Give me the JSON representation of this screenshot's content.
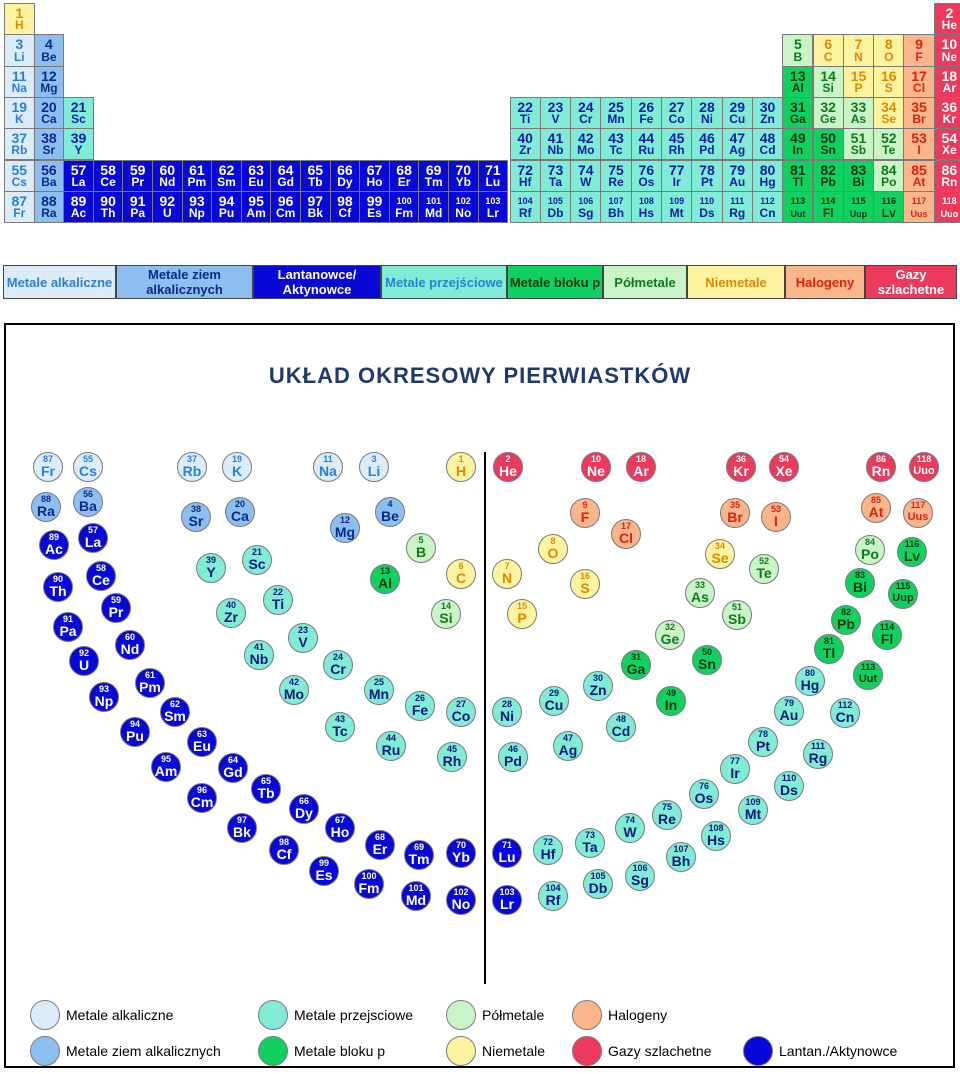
{
  "title": "UKŁAD OKRESOWY PIERWIASTKÓW",
  "colors": {
    "alkali": {
      "bg": "#dcebf8",
      "fg": "#2a7fd8"
    },
    "alkaline": {
      "bg": "#8cbff0",
      "fg": "#0a2a8a"
    },
    "lanact": {
      "bg": "#0808d8",
      "fg": "#ffffff"
    },
    "transition": {
      "bg": "#80ecd6",
      "fg": "#1020a8"
    },
    "pblock": {
      "bg": "#10d060",
      "fg": "#083818"
    },
    "metalloid": {
      "bg": "#c8f4c8",
      "fg": "#0f7a1a"
    },
    "nonmetal": {
      "bg": "#fbf3a0",
      "fg": "#e08800"
    },
    "halogen": {
      "bg": "#f8b68a",
      "fg": "#e02010"
    },
    "noble": {
      "bg": "#ec3a5c",
      "fg": "#ffffff"
    }
  },
  "elements": [
    {
      "n": "1",
      "s": "H",
      "c": "nonmetal",
      "g": 1,
      "r": 0
    },
    {
      "n": "2",
      "s": "He",
      "c": "noble",
      "g": 32,
      "r": 0
    },
    {
      "n": "3",
      "s": "Li",
      "c": "alkali",
      "g": 1,
      "r": 1
    },
    {
      "n": "4",
      "s": "Be",
      "c": "alkaline",
      "g": 2,
      "r": 1
    },
    {
      "n": "5",
      "s": "B",
      "c": "metalloid",
      "g": 27,
      "r": 1
    },
    {
      "n": "6",
      "s": "C",
      "c": "nonmetal",
      "g": 28,
      "r": 1
    },
    {
      "n": "7",
      "s": "N",
      "c": "nonmetal",
      "g": 29,
      "r": 1
    },
    {
      "n": "8",
      "s": "O",
      "c": "nonmetal",
      "g": 30,
      "r": 1
    },
    {
      "n": "9",
      "s": "F",
      "c": "halogen",
      "g": 31,
      "r": 1
    },
    {
      "n": "10",
      "s": "Ne",
      "c": "noble",
      "g": 32,
      "r": 1
    },
    {
      "n": "11",
      "s": "Na",
      "c": "alkali",
      "g": 1,
      "r": 2
    },
    {
      "n": "12",
      "s": "Mg",
      "c": "alkaline",
      "g": 2,
      "r": 2
    },
    {
      "n": "13",
      "s": "Al",
      "c": "pblock",
      "g": 27,
      "r": 2
    },
    {
      "n": "14",
      "s": "Si",
      "c": "metalloid",
      "g": 28,
      "r": 2
    },
    {
      "n": "15",
      "s": "P",
      "c": "nonmetal",
      "g": 29,
      "r": 2
    },
    {
      "n": "16",
      "s": "S",
      "c": "nonmetal",
      "g": 30,
      "r": 2
    },
    {
      "n": "17",
      "s": "Cl",
      "c": "halogen",
      "g": 31,
      "r": 2
    },
    {
      "n": "18",
      "s": "Ar",
      "c": "noble",
      "g": 32,
      "r": 2
    },
    {
      "n": "19",
      "s": "K",
      "c": "alkali",
      "g": 1,
      "r": 3
    },
    {
      "n": "20",
      "s": "Ca",
      "c": "alkaline",
      "g": 2,
      "r": 3
    },
    {
      "n": "21",
      "s": "Sc",
      "c": "transition",
      "g": 3,
      "r": 3
    },
    {
      "n": "22",
      "s": "Ti",
      "c": "transition",
      "g": 18,
      "r": 3
    },
    {
      "n": "23",
      "s": "V",
      "c": "transition",
      "g": 19,
      "r": 3
    },
    {
      "n": "24",
      "s": "Cr",
      "c": "transition",
      "g": 20,
      "r": 3
    },
    {
      "n": "25",
      "s": "Mn",
      "c": "transition",
      "g": 21,
      "r": 3
    },
    {
      "n": "26",
      "s": "Fe",
      "c": "transition",
      "g": 22,
      "r": 3
    },
    {
      "n": "27",
      "s": "Co",
      "c": "transition",
      "g": 23,
      "r": 3
    },
    {
      "n": "28",
      "s": "Ni",
      "c": "transition",
      "g": 24,
      "r": 3
    },
    {
      "n": "29",
      "s": "Cu",
      "c": "transition",
      "g": 25,
      "r": 3
    },
    {
      "n": "30",
      "s": "Zn",
      "c": "transition",
      "g": 26,
      "r": 3
    },
    {
      "n": "31",
      "s": "Ga",
      "c": "pblock",
      "g": 27,
      "r": 3
    },
    {
      "n": "32",
      "s": "Ge",
      "c": "metalloid",
      "g": 28,
      "r": 3
    },
    {
      "n": "33",
      "s": "As",
      "c": "metalloid",
      "g": 29,
      "r": 3
    },
    {
      "n": "34",
      "s": "Se",
      "c": "nonmetal",
      "g": 30,
      "r": 3
    },
    {
      "n": "35",
      "s": "Br",
      "c": "halogen",
      "g": 31,
      "r": 3
    },
    {
      "n": "36",
      "s": "Kr",
      "c": "noble",
      "g": 32,
      "r": 3
    },
    {
      "n": "37",
      "s": "Rb",
      "c": "alkali",
      "g": 1,
      "r": 4
    },
    {
      "n": "38",
      "s": "Sr",
      "c": "alkaline",
      "g": 2,
      "r": 4
    },
    {
      "n": "39",
      "s": "Y",
      "c": "transition",
      "g": 3,
      "r": 4
    },
    {
      "n": "40",
      "s": "Zr",
      "c": "transition",
      "g": 18,
      "r": 4
    },
    {
      "n": "41",
      "s": "Nb",
      "c": "transition",
      "g": 19,
      "r": 4
    },
    {
      "n": "42",
      "s": "Mo",
      "c": "transition",
      "g": 20,
      "r": 4
    },
    {
      "n": "43",
      "s": "Tc",
      "c": "transition",
      "g": 21,
      "r": 4
    },
    {
      "n": "44",
      "s": "Ru",
      "c": "transition",
      "g": 22,
      "r": 4
    },
    {
      "n": "45",
      "s": "Rh",
      "c": "transition",
      "g": 23,
      "r": 4
    },
    {
      "n": "46",
      "s": "Pd",
      "c": "transition",
      "g": 24,
      "r": 4
    },
    {
      "n": "47",
      "s": "Ag",
      "c": "transition",
      "g": 25,
      "r": 4
    },
    {
      "n": "48",
      "s": "Cd",
      "c": "transition",
      "g": 26,
      "r": 4
    },
    {
      "n": "49",
      "s": "In",
      "c": "pblock",
      "g": 27,
      "r": 4
    },
    {
      "n": "50",
      "s": "Sn",
      "c": "pblock",
      "g": 28,
      "r": 4
    },
    {
      "n": "51",
      "s": "Sb",
      "c": "metalloid",
      "g": 29,
      "r": 4
    },
    {
      "n": "52",
      "s": "Te",
      "c": "metalloid",
      "g": 30,
      "r": 4
    },
    {
      "n": "53",
      "s": "I",
      "c": "halogen",
      "g": 31,
      "r": 4
    },
    {
      "n": "54",
      "s": "Xe",
      "c": "noble",
      "g": 32,
      "r": 4
    },
    {
      "n": "55",
      "s": "Cs",
      "c": "alkali",
      "g": 1,
      "r": 5
    },
    {
      "n": "56",
      "s": "Ba",
      "c": "alkaline",
      "g": 2,
      "r": 5
    },
    {
      "n": "57",
      "s": "La",
      "c": "lanact",
      "g": 3,
      "r": 5
    },
    {
      "n": "58",
      "s": "Ce",
      "c": "lanact",
      "g": 4,
      "r": 5
    },
    {
      "n": "59",
      "s": "Pr",
      "c": "lanact",
      "g": 5,
      "r": 5
    },
    {
      "n": "60",
      "s": "Nd",
      "c": "lanact",
      "g": 6,
      "r": 5
    },
    {
      "n": "61",
      "s": "Pm",
      "c": "lanact",
      "g": 7,
      "r": 5
    },
    {
      "n": "62",
      "s": "Sm",
      "c": "lanact",
      "g": 8,
      "r": 5
    },
    {
      "n": "63",
      "s": "Eu",
      "c": "lanact",
      "g": 9,
      "r": 5
    },
    {
      "n": "64",
      "s": "Gd",
      "c": "lanact",
      "g": 10,
      "r": 5
    },
    {
      "n": "65",
      "s": "Tb",
      "c": "lanact",
      "g": 11,
      "r": 5
    },
    {
      "n": "66",
      "s": "Dy",
      "c": "lanact",
      "g": 12,
      "r": 5
    },
    {
      "n": "67",
      "s": "Ho",
      "c": "lanact",
      "g": 13,
      "r": 5
    },
    {
      "n": "68",
      "s": "Er",
      "c": "lanact",
      "g": 14,
      "r": 5
    },
    {
      "n": "69",
      "s": "Tm",
      "c": "lanact",
      "g": 15,
      "r": 5
    },
    {
      "n": "70",
      "s": "Yb",
      "c": "lanact",
      "g": 16,
      "r": 5
    },
    {
      "n": "71",
      "s": "Lu",
      "c": "lanact",
      "g": 17,
      "r": 5
    },
    {
      "n": "72",
      "s": "Hf",
      "c": "transition",
      "g": 18,
      "r": 5
    },
    {
      "n": "73",
      "s": "Ta",
      "c": "transition",
      "g": 19,
      "r": 5
    },
    {
      "n": "74",
      "s": "W",
      "c": "transition",
      "g": 20,
      "r": 5
    },
    {
      "n": "75",
      "s": "Re",
      "c": "transition",
      "g": 21,
      "r": 5
    },
    {
      "n": "76",
      "s": "Os",
      "c": "transition",
      "g": 22,
      "r": 5
    },
    {
      "n": "77",
      "s": "Ir",
      "c": "transition",
      "g": 23,
      "r": 5
    },
    {
      "n": "78",
      "s": "Pt",
      "c": "transition",
      "g": 24,
      "r": 5
    },
    {
      "n": "79",
      "s": "Au",
      "c": "transition",
      "g": 25,
      "r": 5
    },
    {
      "n": "80",
      "s": "Hg",
      "c": "transition",
      "g": 26,
      "r": 5
    },
    {
      "n": "81",
      "s": "Tl",
      "c": "pblock",
      "g": 27,
      "r": 5
    },
    {
      "n": "82",
      "s": "Pb",
      "c": "pblock",
      "g": 28,
      "r": 5
    },
    {
      "n": "83",
      "s": "Bi",
      "c": "pblock",
      "g": 29,
      "r": 5
    },
    {
      "n": "84",
      "s": "Po",
      "c": "metalloid",
      "g": 30,
      "r": 5
    },
    {
      "n": "85",
      "s": "At",
      "c": "halogen",
      "g": 31,
      "r": 5
    },
    {
      "n": "86",
      "s": "Rn",
      "c": "noble",
      "g": 32,
      "r": 5
    },
    {
      "n": "87",
      "s": "Fr",
      "c": "alkali",
      "g": 1,
      "r": 6
    },
    {
      "n": "88",
      "s": "Ra",
      "c": "alkaline",
      "g": 2,
      "r": 6
    },
    {
      "n": "89",
      "s": "Ac",
      "c": "lanact",
      "g": 3,
      "r": 6
    },
    {
      "n": "90",
      "s": "Th",
      "c": "lanact",
      "g": 4,
      "r": 6
    },
    {
      "n": "91",
      "s": "Pa",
      "c": "lanact",
      "g": 5,
      "r": 6
    },
    {
      "n": "92",
      "s": "U",
      "c": "lanact",
      "g": 6,
      "r": 6
    },
    {
      "n": "93",
      "s": "Np",
      "c": "lanact",
      "g": 7,
      "r": 6
    },
    {
      "n": "94",
      "s": "Pu",
      "c": "lanact",
      "g": 8,
      "r": 6
    },
    {
      "n": "95",
      "s": "Am",
      "c": "lanact",
      "g": 9,
      "r": 6
    },
    {
      "n": "96",
      "s": "Cm",
      "c": "lanact",
      "g": 10,
      "r": 6
    },
    {
      "n": "97",
      "s": "Bk",
      "c": "lanact",
      "g": 11,
      "r": 6
    },
    {
      "n": "98",
      "s": "Cf",
      "c": "lanact",
      "g": 12,
      "r": 6
    },
    {
      "n": "99",
      "s": "Es",
      "c": "lanact",
      "g": 13,
      "r": 6
    },
    {
      "n": "100",
      "s": "Fm",
      "c": "lanact",
      "g": 14,
      "r": 6
    },
    {
      "n": "101",
      "s": "Md",
      "c": "lanact",
      "g": 15,
      "r": 6
    },
    {
      "n": "102",
      "s": "No",
      "c": "lanact",
      "g": 16,
      "r": 6
    },
    {
      "n": "103",
      "s": "Lr",
      "c": "lanact",
      "g": 17,
      "r": 6
    },
    {
      "n": "104",
      "s": "Rf",
      "c": "transition",
      "g": 18,
      "r": 6
    },
    {
      "n": "105",
      "s": "Db",
      "c": "transition",
      "g": 19,
      "r": 6
    },
    {
      "n": "106",
      "s": "Sg",
      "c": "transition",
      "g": 20,
      "r": 6
    },
    {
      "n": "107",
      "s": "Bh",
      "c": "transition",
      "g": 21,
      "r": 6
    },
    {
      "n": "108",
      "s": "Hs",
      "c": "transition",
      "g": 22,
      "r": 6
    },
    {
      "n": "109",
      "s": "Mt",
      "c": "transition",
      "g": 23,
      "r": 6
    },
    {
      "n": "110",
      "s": "Ds",
      "c": "transition",
      "g": 24,
      "r": 6
    },
    {
      "n": "111",
      "s": "Rg",
      "c": "transition",
      "g": 25,
      "r": 6
    },
    {
      "n": "112",
      "s": "Cn",
      "c": "transition",
      "g": 26,
      "r": 6
    },
    {
      "n": "113",
      "s": "Uut",
      "c": "pblock",
      "g": 27,
      "r": 6
    },
    {
      "n": "114",
      "s": "Fl",
      "c": "pblock",
      "g": 28,
      "r": 6
    },
    {
      "n": "115",
      "s": "Uup",
      "c": "pblock",
      "g": 29,
      "r": 6
    },
    {
      "n": "116",
      "s": "Lv",
      "c": "pblock",
      "g": 30,
      "r": 6
    },
    {
      "n": "117",
      "s": "Uus",
      "c": "halogen",
      "g": 31,
      "r": 6
    },
    {
      "n": "118",
      "s": "Uuo",
      "c": "noble",
      "g": 32,
      "r": 6
    }
  ],
  "category_bar": [
    {
      "label": "Metale alkaliczne",
      "c": "alkali"
    },
    {
      "label": "Metale ziem alkalicznych",
      "c": "alkaline"
    },
    {
      "label": "Lantanowce/ Aktynowce",
      "c": "lanact"
    },
    {
      "label": "Metale przejściowe",
      "c": "transition"
    },
    {
      "label": "Metale bloku p",
      "c": "pblock"
    },
    {
      "label": "Półmetale",
      "c": "metalloid"
    },
    {
      "label": "Niemetale",
      "c": "nonmetal"
    },
    {
      "label": "Halogeny",
      "c": "halogen"
    },
    {
      "label": "Gazy szlachetne",
      "c": "noble"
    }
  ],
  "bottom_legend": [
    {
      "label": "Metale alkaliczne",
      "c": "alkali"
    },
    {
      "label": "Metale przejsciowe",
      "c": "transition"
    },
    {
      "label": "Półmetale",
      "c": "metalloid"
    },
    {
      "label": "Halogeny",
      "c": "halogen"
    },
    {
      "label": "Metale ziem alkalicznych",
      "c": "alkaline"
    },
    {
      "label": "Metale bloku p",
      "c": "pblock"
    },
    {
      "label": "Niemetale",
      "c": "nonmetal"
    },
    {
      "label": "Gazy szlachetne",
      "c": "noble"
    },
    {
      "label": "Lantan./Aktynowce",
      "c": "lanact"
    }
  ]
}
